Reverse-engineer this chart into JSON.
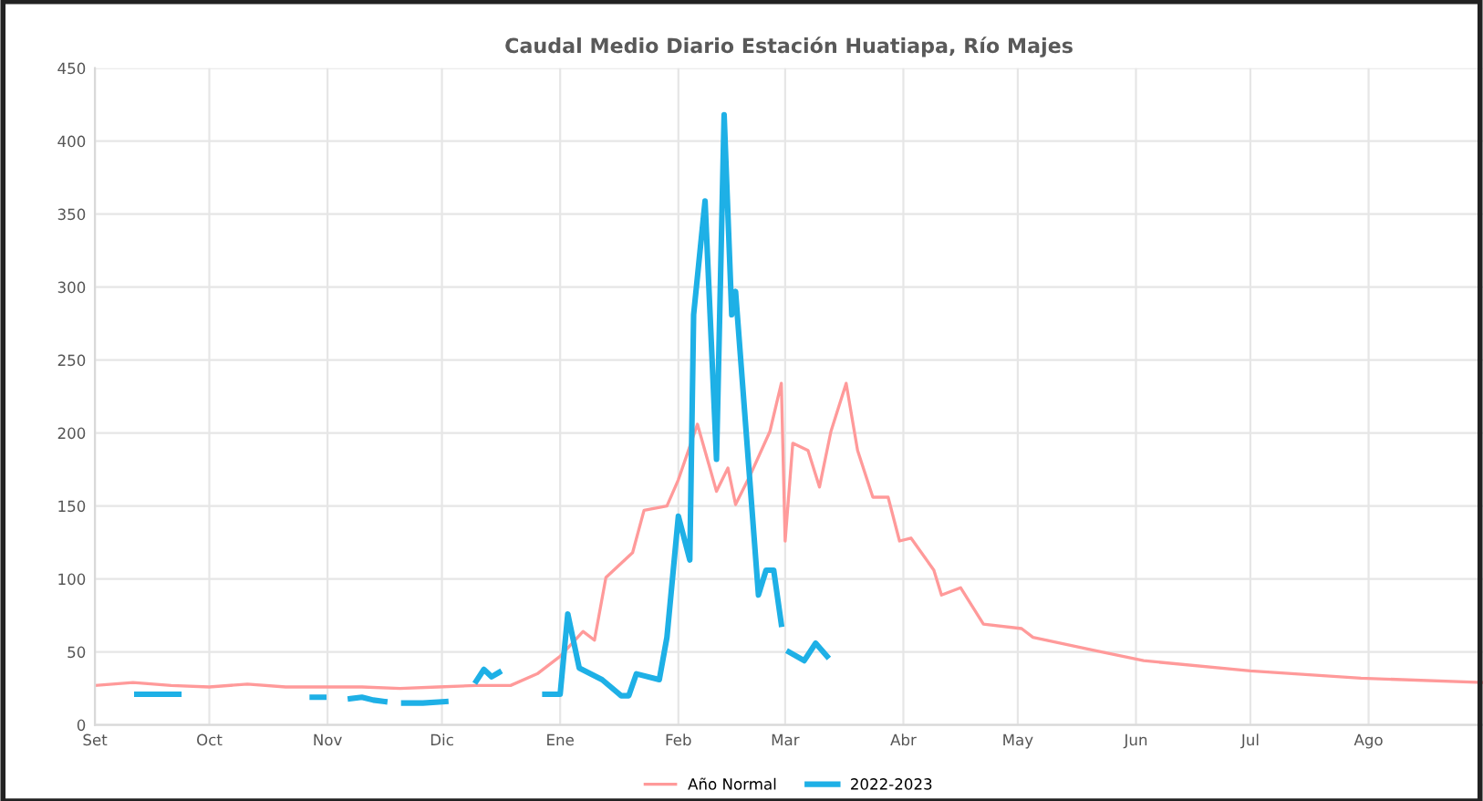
{
  "chart_data": {
    "type": "line",
    "title": "Caudal Medio Diario Estación Huatiapa, Río Majes",
    "xlim": [
      "2022-09-01",
      "2023-08-31"
    ],
    "xticks": [
      {
        "value": "2022-09-01",
        "label": "Set"
      },
      {
        "value": "2022-10-01",
        "label": "Oct"
      },
      {
        "value": "2022-11-01",
        "label": "Nov"
      },
      {
        "value": "2022-12-01",
        "label": "Dic"
      },
      {
        "value": "2023-01-01",
        "label": "Ene"
      },
      {
        "value": "2023-02-01",
        "label": "Feb"
      },
      {
        "value": "2023-03-01",
        "label": "Mar"
      },
      {
        "value": "2023-04-01",
        "label": "Abr"
      },
      {
        "value": "2023-05-01",
        "label": "May"
      },
      {
        "value": "2023-06-01",
        "label": "Jun"
      },
      {
        "value": "2023-07-01",
        "label": "Jul"
      },
      {
        "value": "2023-08-01",
        "label": "Ago"
      }
    ],
    "ylim": [
      0,
      450
    ],
    "yticks": [
      0,
      50,
      100,
      150,
      200,
      250,
      300,
      350,
      400,
      450
    ],
    "grid": true,
    "legend": "bottom",
    "marker": "none",
    "line_style": "solid",
    "series": [
      {
        "name": "Año Normal",
        "color": "#ff9a9a",
        "x": [
          "2022-09-01",
          "2022-09-11",
          "2022-09-21",
          "2022-10-01",
          "2022-10-11",
          "2022-10-21",
          "2022-10-31",
          "2022-11-10",
          "2022-11-20",
          "2022-11-30",
          "2022-12-10",
          "2022-12-19",
          "2022-12-26",
          "2023-01-01",
          "2023-01-07",
          "2023-01-10",
          "2023-01-13",
          "2023-01-20",
          "2023-01-23",
          "2023-01-29",
          "2023-02-01",
          "2023-02-06",
          "2023-02-11",
          "2023-02-14",
          "2023-02-16",
          "2023-02-20",
          "2023-02-25",
          "2023-02-28",
          "2023-03-01",
          "2023-03-03",
          "2023-03-07",
          "2023-03-10",
          "2023-03-13",
          "2023-03-17",
          "2023-03-20",
          "2023-03-24",
          "2023-03-28",
          "2023-03-31",
          "2023-04-03",
          "2023-04-09",
          "2023-04-11",
          "2023-04-16",
          "2023-04-22",
          "2023-05-02",
          "2023-05-05",
          "2023-05-21",
          "2023-06-03",
          "2023-07-01",
          "2023-07-30",
          "2023-08-31"
        ],
        "values": [
          27,
          29,
          27,
          26,
          28,
          26,
          26,
          26,
          25,
          26,
          27,
          27,
          35,
          47,
          64,
          58,
          101,
          118,
          147,
          150,
          168,
          206,
          160,
          176,
          151,
          172,
          201,
          234,
          126,
          193,
          188,
          163,
          201,
          234,
          188,
          156,
          156,
          126,
          128,
          106,
          89,
          94,
          69,
          66,
          60,
          51,
          44,
          37,
          32,
          29
        ]
      },
      {
        "name": "2022-2023",
        "color": "#1eb0e6",
        "x": [
          "2022-09-12",
          "2022-09-23",
          "2022-09-24",
          "2022-10-28",
          "2022-10-31",
          "2022-11-01",
          "2022-11-07",
          "2022-11-10",
          "2022-11-13",
          "2022-11-16",
          "2022-11-17",
          "2022-11-21",
          "2022-11-26",
          "2022-12-02",
          "2022-12-03",
          "2022-12-10",
          "2022-12-12",
          "2022-12-14",
          "2022-12-16",
          "2022-12-17",
          "2022-12-28",
          "2023-01-01",
          "2023-01-03",
          "2023-01-06",
          "2023-01-12",
          "2023-01-17",
          "2023-01-19",
          "2023-01-21",
          "2023-01-27",
          "2023-01-29",
          "2023-02-01",
          "2023-02-04",
          "2023-02-05",
          "2023-02-08",
          "2023-02-11",
          "2023-02-13",
          "2023-02-15",
          "2023-02-16",
          "2023-02-22",
          "2023-02-24",
          "2023-02-26",
          "2023-02-28",
          "2023-03-01",
          "2023-03-02",
          "2023-03-06",
          "2023-03-09",
          "2023-03-12"
        ],
        "values": [
          21,
          21,
          null,
          19,
          19,
          null,
          18,
          19,
          17,
          16,
          null,
          15,
          15,
          16,
          null,
          30,
          38,
          33,
          36,
          null,
          21,
          21,
          76,
          39,
          31,
          20,
          20,
          35,
          31,
          60,
          143,
          113,
          281,
          359,
          182,
          418,
          281,
          297,
          89,
          106,
          106,
          69,
          null,
          50,
          44,
          56,
          47
        ]
      }
    ]
  }
}
